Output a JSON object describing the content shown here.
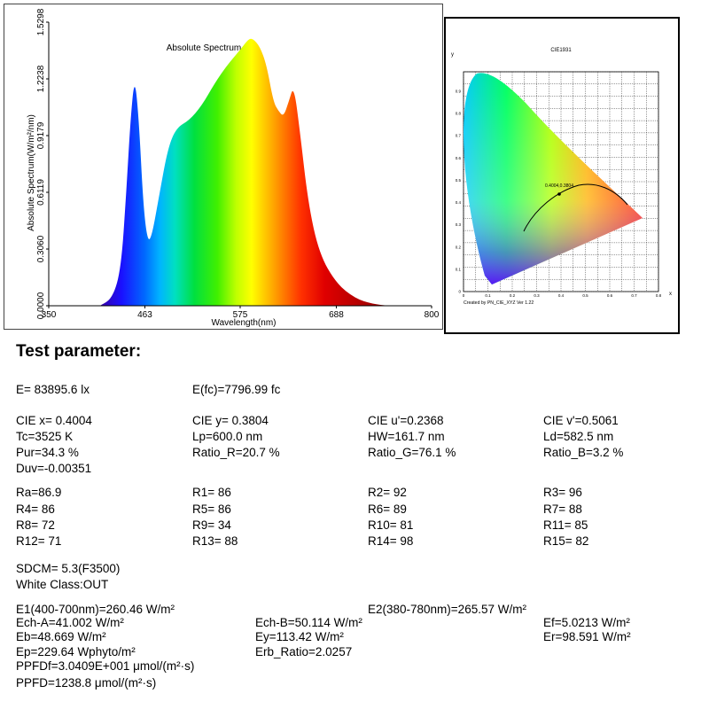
{
  "spectrum": {
    "title": "Absolute Spectrum",
    "ylabel": "Absolute Spectrum(W/m²/nm)",
    "xlabel": "Wavelength(nm)",
    "xticks": [
      "350",
      "463",
      "575",
      "688",
      "800"
    ],
    "yticks": [
      "0.0000",
      "0.3060",
      "0.6119",
      "0.9179",
      "1.2238",
      "1.5298"
    ]
  },
  "cie": {
    "title": "CIE1931",
    "y_axis_name": "y",
    "x_axis_name": "x",
    "point_label": "0.4004,0.3804",
    "footer": "Created by PN_CIE_XYZ Ver 1.22",
    "xticks": [
      "0",
      "0.1",
      "0.2",
      "0.3",
      "0.4",
      "0.5",
      "0.6",
      "0.7",
      "0.8"
    ],
    "yticks": [
      "0.9",
      "0.8",
      "0.7",
      "0.6",
      "0.5",
      "0.4",
      "0.3",
      "0.2",
      "0.1",
      "0"
    ]
  },
  "chart_data": {
    "type": "area",
    "title": "Absolute Spectrum",
    "xlabel": "Wavelength(nm)",
    "ylabel": "Absolute Spectrum(W/m²/nm)",
    "xlim": [
      350,
      800
    ],
    "ylim": [
      0,
      1.5298
    ],
    "x": [
      410,
      425,
      435,
      441,
      446,
      451,
      456,
      461,
      466,
      471,
      480,
      490,
      500,
      515,
      530,
      545,
      560,
      575,
      585,
      590,
      598,
      606,
      614,
      620,
      626,
      632,
      638,
      645,
      655,
      668,
      688,
      710,
      730,
      750
    ],
    "y": [
      0.0,
      0.04,
      0.2,
      0.6,
      1.0,
      1.24,
      1.0,
      0.55,
      0.35,
      0.37,
      0.6,
      0.85,
      0.96,
      1.0,
      1.08,
      1.2,
      1.3,
      1.38,
      1.44,
      1.44,
      1.4,
      1.3,
      1.1,
      1.05,
      1.02,
      1.1,
      1.19,
      0.95,
      0.55,
      0.28,
      0.12,
      0.04,
      0.01,
      0.0
    ]
  },
  "params": {
    "heading": "Test parameter:",
    "rows": [
      [
        "E=  83895.6 lx",
        "E(fc)=7796.99 fc"
      ],
      [
        "CIE x= 0.4004",
        "CIE y= 0.3804",
        "CIE u'=0.2368",
        "CIE v'=0.5061"
      ],
      [
        "Tc=3525 K",
        "Lp=600.0 nm",
        "HW=161.7 nm",
        "Ld=582.5 nm"
      ],
      [
        "Pur=34.3 %",
        "Ratio_R=20.7 %",
        "Ratio_G=76.1 %",
        "Ratio_B=3.2 %"
      ],
      [
        "Duv=-0.00351"
      ],
      [
        "Ra=86.9",
        "R1= 86",
        "R2= 92",
        "R3= 96"
      ],
      [
        "R4= 86",
        "R5= 86",
        "R6= 89",
        "R7= 88"
      ],
      [
        "R8= 72",
        "R9= 34",
        "R10= 81",
        "R11= 85"
      ],
      [
        "R12= 71",
        "R13= 88",
        "R14= 98",
        "R15= 82"
      ],
      [
        "SDCM= 5.3(F3500)"
      ],
      [
        "White Class:OUT"
      ],
      [
        "E1(400-700nm)=260.46 W/m²",
        "E2(380-780nm)=265.57 W/m²"
      ],
      [
        "Ech-A=41.002 W/m²",
        "Ech-B=50.114 W/m²",
        "Ef=5.0213 W/m²"
      ],
      [
        "Eb=48.669 W/m²",
        "Ey=113.42 W/m²",
        "Er=98.591 W/m²"
      ],
      [
        "Ep=229.64 Wphyto/m²",
        "Erb_Ratio=2.0257"
      ],
      [
        "PPFDf=3.0409E+001 μmol/(m²·s)"
      ],
      [
        "PPFD=1238.8 μmol/(m²·s)"
      ]
    ]
  }
}
